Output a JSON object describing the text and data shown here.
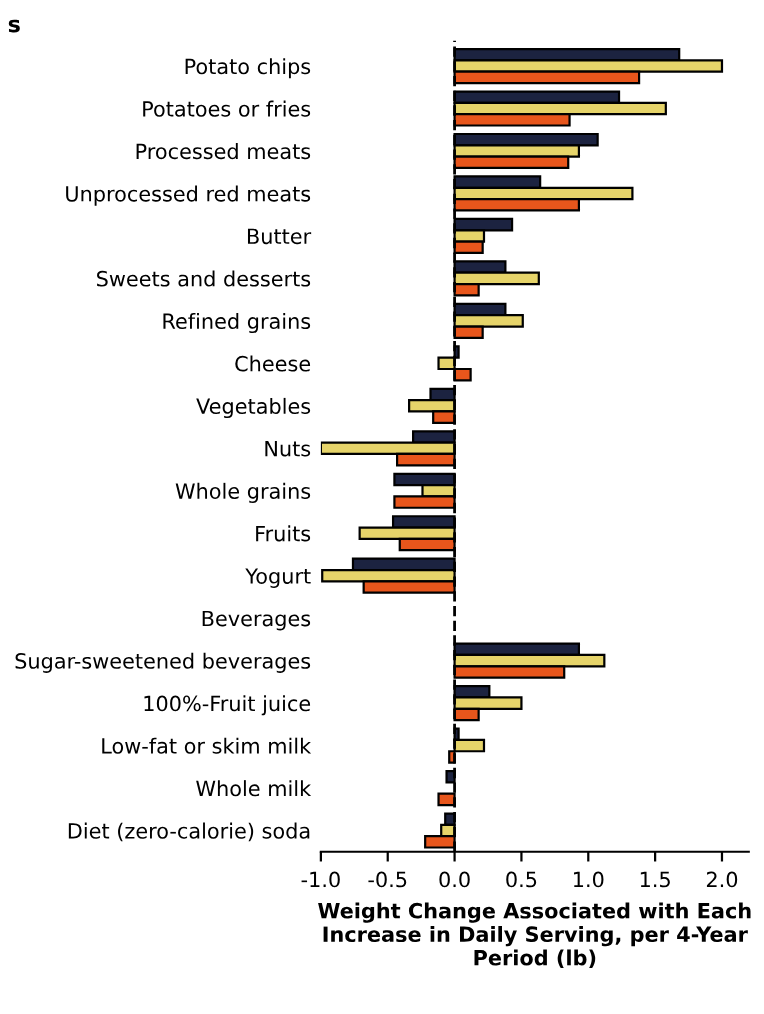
{
  "chart_data": {
    "type": "bar",
    "orientation": "horizontal",
    "categories": [
      "Potato chips",
      "Potatoes or fries",
      "Processed meats",
      "Unprocessed red meats",
      "Butter",
      "Sweets and desserts",
      "Refined grains",
      "Cheese",
      "Vegetables",
      "Nuts",
      "Whole grains",
      "Fruits",
      "Yogurt",
      "Beverages",
      "Sugar-sweetened beverages",
      "100%-Fruit juice",
      "Low-fat or skim milk",
      "Whole milk",
      "Diet (zero-calorie) soda"
    ],
    "series": [
      {
        "color": "#1c2340",
        "values": [
          1.68,
          1.23,
          1.07,
          0.64,
          0.43,
          0.38,
          0.38,
          0.03,
          -0.18,
          -0.31,
          -0.45,
          -0.46,
          -0.76,
          null,
          0.93,
          0.26,
          0.03,
          -0.06,
          -0.07
        ]
      },
      {
        "color": "#e6d46a",
        "values": [
          2.0,
          1.58,
          0.93,
          1.33,
          0.22,
          0.63,
          0.51,
          -0.12,
          -0.34,
          -1.0,
          -0.24,
          -0.71,
          -0.99,
          null,
          1.12,
          0.5,
          0.22,
          null,
          -0.1
        ]
      },
      {
        "color": "#e8561c",
        "values": [
          1.38,
          0.86,
          0.85,
          0.93,
          0.21,
          0.18,
          0.21,
          0.12,
          -0.16,
          -0.43,
          -0.45,
          -0.41,
          -0.68,
          null,
          0.82,
          0.18,
          -0.04,
          -0.12,
          -0.22
        ]
      }
    ],
    "xlim": [
      -1.0,
      2.2
    ],
    "xticks": [
      {
        "value": -1.0,
        "label": "-1.0"
      },
      {
        "value": -0.5,
        "label": "-0.5"
      },
      {
        "value": 0.0,
        "label": "0.0"
      },
      {
        "value": 0.5,
        "label": "0.5"
      },
      {
        "value": 1.0,
        "label": "1.0"
      },
      {
        "value": 1.5,
        "label": "1.5"
      },
      {
        "value": 2.0,
        "label": "2.0"
      }
    ],
    "xlabel": "Weight Change Associated with Each Increase in Daily Serving, per 4-Year Period (lb)",
    "ref_lines": [
      {
        "axis": "x",
        "value": 0,
        "line_style": "dashed",
        "color": "#000000"
      }
    ],
    "annotations": [
      "s"
    ],
    "grid": false
  }
}
